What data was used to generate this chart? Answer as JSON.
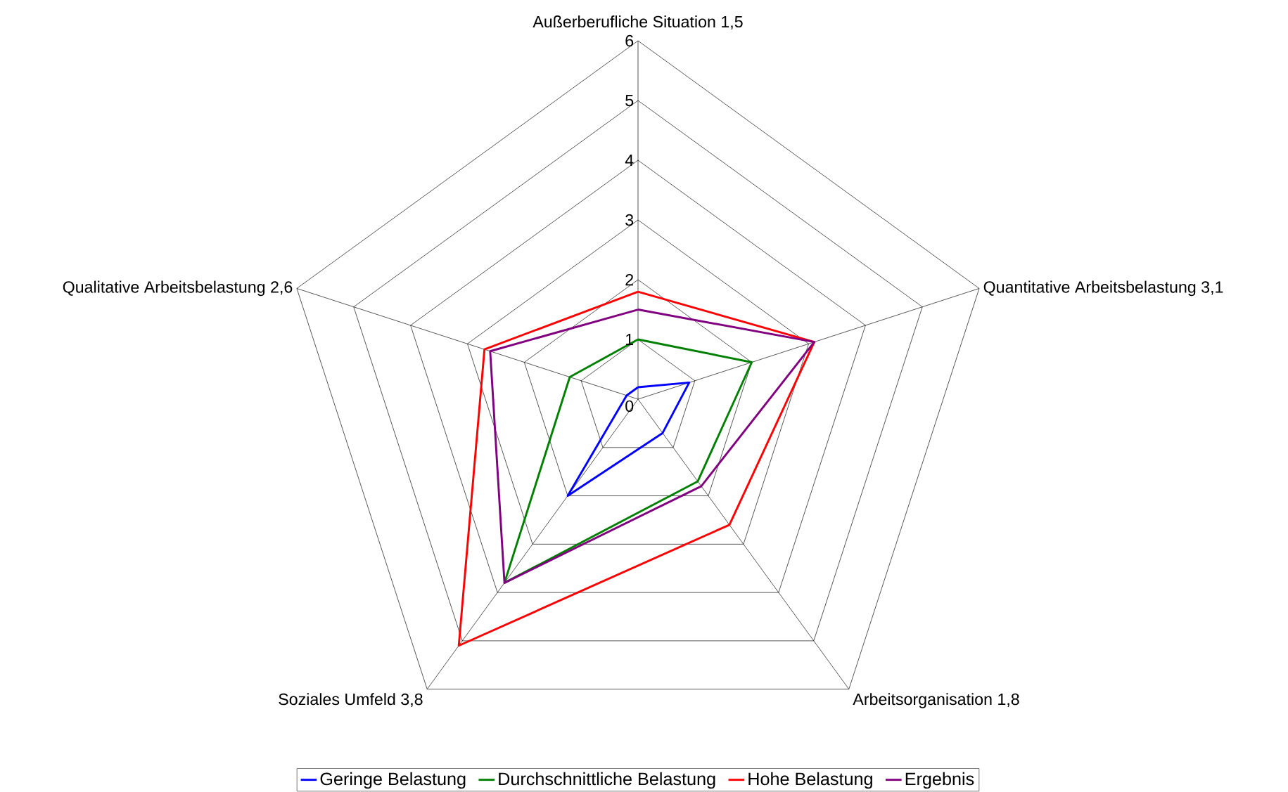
{
  "chart_data": {
    "type": "radar",
    "categories": [
      "Außerberufliche Situation 1,5",
      "Quantitative Arbeitsbelastung 3,1",
      "Arbeitsorganisation 1,8",
      "Soziales Umfeld 3,8",
      "Qualitative Arbeitsbelastung 2,6"
    ],
    "series": [
      {
        "name": "Geringe Belastung",
        "color": "#0000ff",
        "values": [
          0.2,
          0.9,
          0.7,
          2.0,
          0.2
        ]
      },
      {
        "name": "Durchschnittliche Belastung",
        "color": "#008000",
        "values": [
          1.0,
          2.0,
          1.7,
          3.8,
          1.2
        ]
      },
      {
        "name": "Hohe Belastung",
        "color": "#ff0000",
        "values": [
          1.8,
          3.1,
          2.6,
          5.1,
          2.7
        ]
      },
      {
        "name": "Ergebnis",
        "color": "#800080",
        "values": [
          1.5,
          3.1,
          1.8,
          3.8,
          2.6
        ]
      }
    ],
    "ylim": [
      0,
      6
    ],
    "yticks": [
      {
        "value": 0,
        "label": "0"
      },
      1,
      2,
      3,
      4,
      5,
      6
    ],
    "grid": true,
    "legend": "bottom"
  }
}
